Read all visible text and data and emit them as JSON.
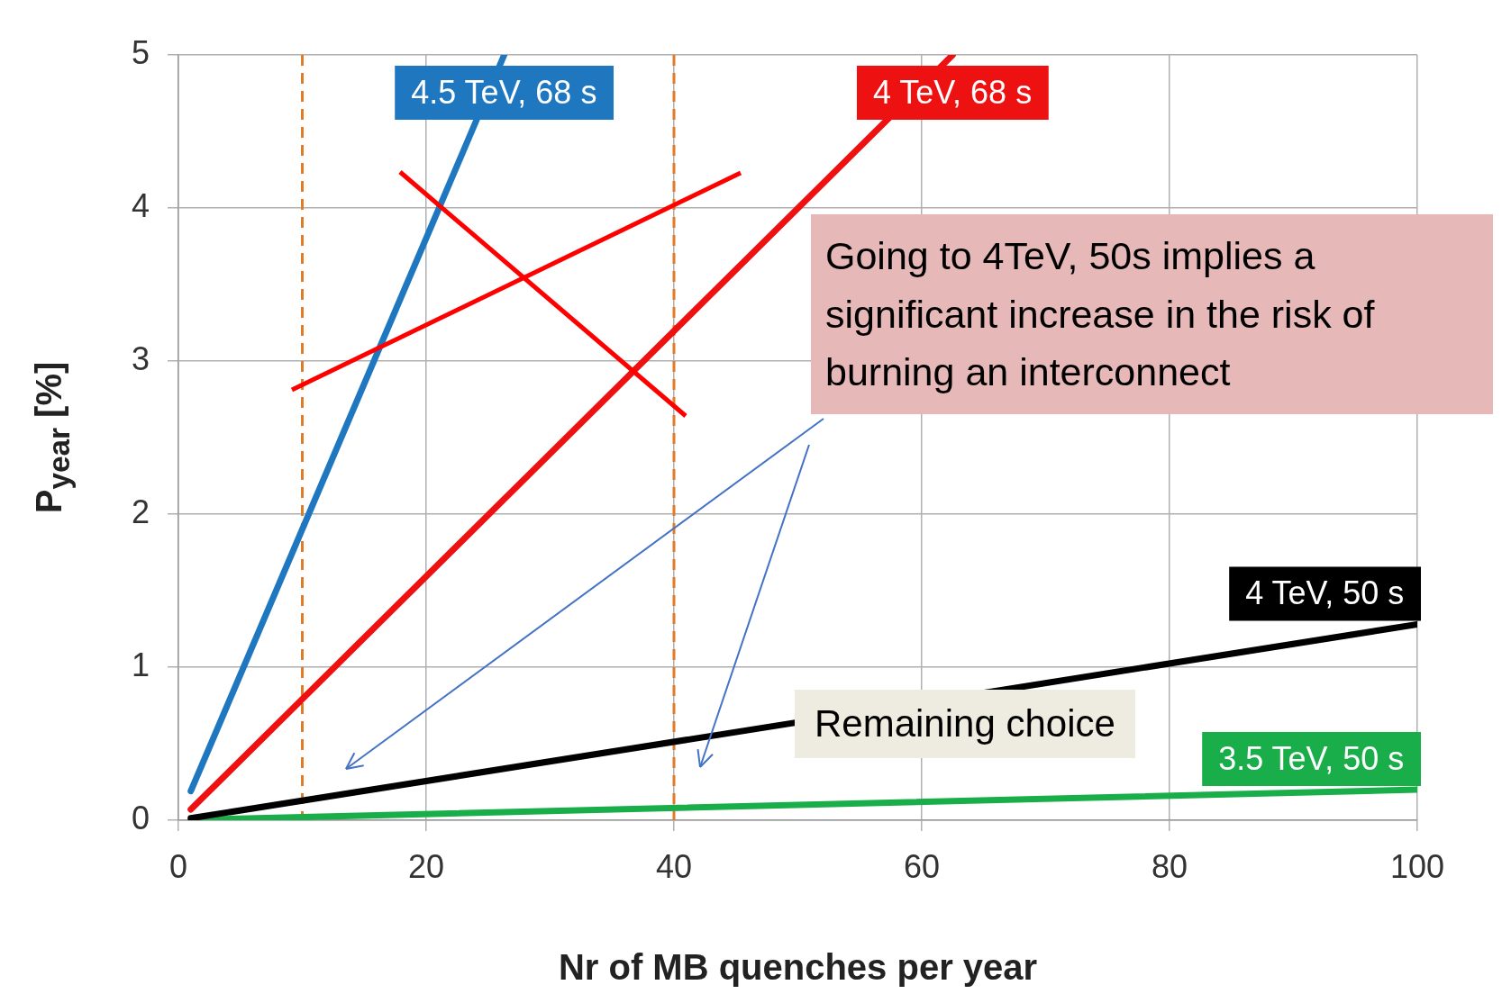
{
  "chart_data": {
    "type": "line",
    "xlabel": "Nr of MB quenches per year",
    "ylabel": "P$_{year}$ [%]",
    "xlim": [
      0,
      100
    ],
    "xticks": [
      0,
      20,
      40,
      60,
      80,
      100
    ],
    "ylim": [
      0,
      5
    ],
    "yticks": [
      0,
      1,
      2,
      3,
      4,
      5
    ],
    "grid": true,
    "legend": false,
    "marker": "none",
    "line_style": "solid",
    "series": [
      {
        "name": "4.5 TeV, 68 s",
        "color": "#1f77c0",
        "x": [
          1,
          26.3
        ],
        "values": [
          0.19,
          5
        ]
      },
      {
        "name": "4 TeV, 68 s",
        "color": "#ee1111",
        "x": [
          1,
          62.5
        ],
        "values": [
          0.07,
          5
        ]
      },
      {
        "name": "4 TeV, 50 s",
        "color": "#000000",
        "x": [
          1,
          100
        ],
        "values": [
          0.013,
          1.28
        ]
      },
      {
        "name": "3.5 TeV, 50 s",
        "color": "#1aae4a",
        "x": [
          1,
          100
        ],
        "values": [
          0.002,
          0.2
        ]
      }
    ],
    "ref_lines": [
      {
        "axis": "x",
        "value": 10,
        "color": "#e07b28",
        "line_style": "dashed"
      },
      {
        "axis": "x",
        "value": 40,
        "color": "#e07b28",
        "line_style": "dashed"
      }
    ],
    "annotations": [
      "Going to 4TeV, 50s implies a significant increase in the risk of burning an interconnect",
      "Remaining choice"
    ]
  }
}
